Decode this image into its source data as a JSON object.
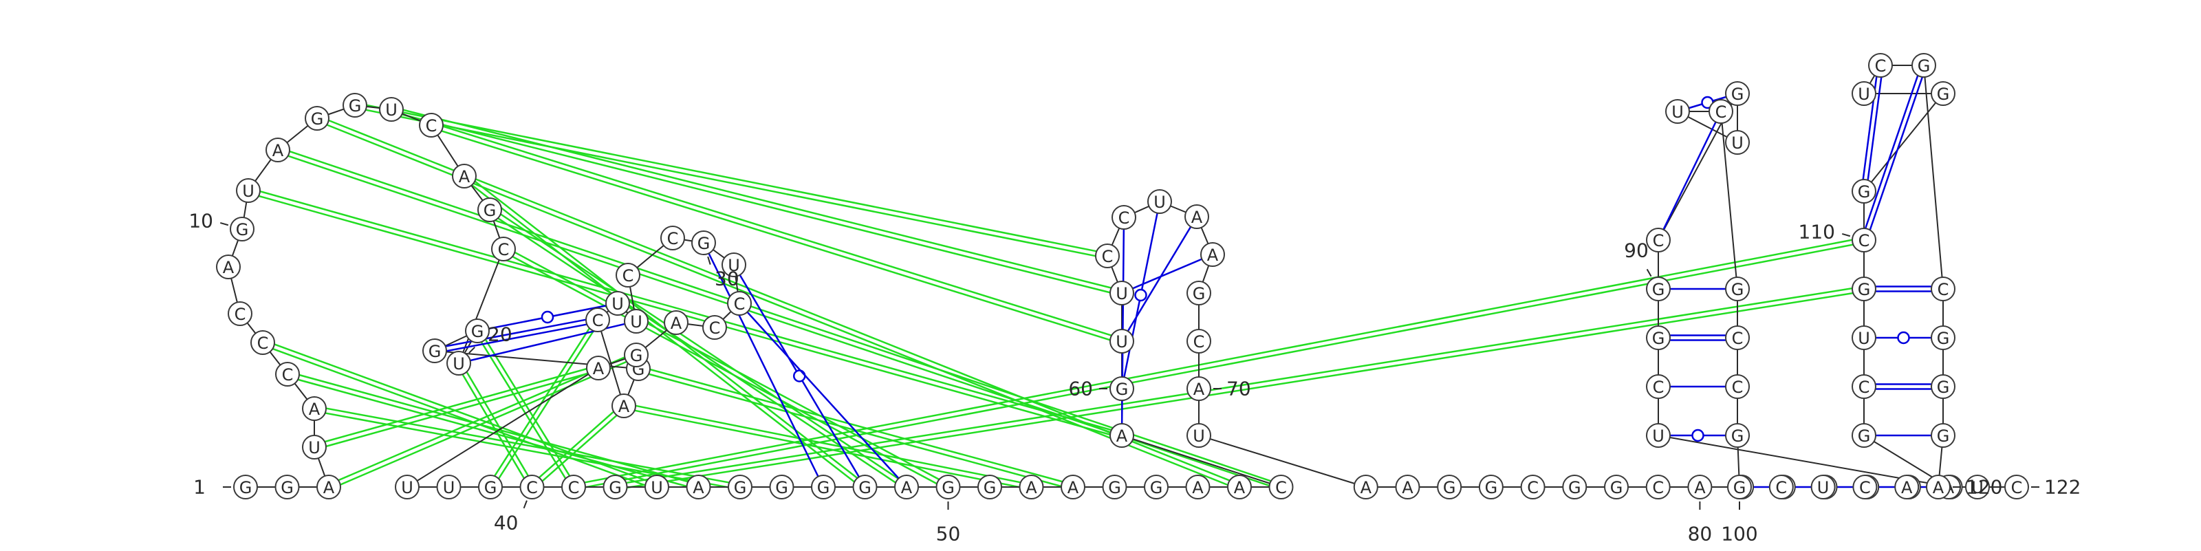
{
  "diagram": {
    "sequence": "GGAUACCCAGUAGGUCAGCUGGGACUUCCGUCCAGAUUGCCGUAGGGGAGGAAGGAACAGUUCCUAAGCAUAAGGCGGCAUCGAGAUCGGCGUUCGCCGGCUCAAGCUGCGGUCGCGGGAUCC",
    "colors": {
      "nested_pair": "#0000dd",
      "pseudoknot_pair": "#22dd22",
      "outline": "#3a3a3a"
    },
    "labels": [
      {
        "text": "1",
        "nucleotide": 1
      },
      {
        "text": "10",
        "nucleotide": 10
      },
      {
        "text": "20",
        "nucleotide": 20
      },
      {
        "text": "30",
        "nucleotide": 30
      },
      {
        "text": "40",
        "nucleotide": 40
      },
      {
        "text": "50",
        "nucleotide": 50
      },
      {
        "text": "60",
        "nucleotide": 60
      },
      {
        "text": "70",
        "nucleotide": 70
      },
      {
        "text": "80",
        "nucleotide": 80
      },
      {
        "text": "90",
        "nucleotide": 90
      },
      {
        "text": "100",
        "nucleotide": 100
      },
      {
        "text": "110",
        "nucleotide": 110
      },
      {
        "text": "120",
        "nucleotide": 120
      },
      {
        "text": "122",
        "nucleotide": 122
      }
    ],
    "nested_pairs": [
      [
        20,
        27
      ],
      [
        21,
        26
      ],
      [
        22,
        25
      ],
      [
        30,
        47
      ],
      [
        31,
        48
      ],
      [
        32,
        49
      ],
      [
        59,
        64
      ],
      [
        60,
        65
      ],
      [
        61,
        66
      ],
      [
        62,
        67
      ],
      [
        86,
        100
      ],
      [
        87,
        99
      ],
      [
        88,
        98
      ],
      [
        89,
        97
      ],
      [
        90,
        96
      ],
      [
        91,
        95
      ],
      [
        92,
        94
      ],
      [
        105,
        120
      ],
      [
        106,
        119
      ],
      [
        107,
        118
      ],
      [
        108,
        117
      ],
      [
        109,
        116
      ],
      [
        110,
        115
      ],
      [
        111,
        114
      ]
    ],
    "pseudoknot_pairs": [
      [
        17,
        48
      ],
      [
        18,
        49
      ],
      [
        19,
        50
      ],
      [
        16,
        61
      ],
      [
        15,
        62
      ],
      [
        14,
        63
      ],
      [
        5,
        45
      ],
      [
        6,
        44
      ],
      [
        7,
        43
      ],
      [
        20,
        40
      ],
      [
        21,
        41
      ],
      [
        11,
        59
      ],
      [
        12,
        58
      ],
      [
        13,
        57
      ],
      [
        24,
        40
      ],
      [
        25,
        39
      ],
      [
        23,
        53
      ],
      [
        24,
        52
      ],
      [
        41,
        110
      ],
      [
        42,
        109
      ],
      [
        3,
        35
      ],
      [
        4,
        36
      ]
    ]
  }
}
